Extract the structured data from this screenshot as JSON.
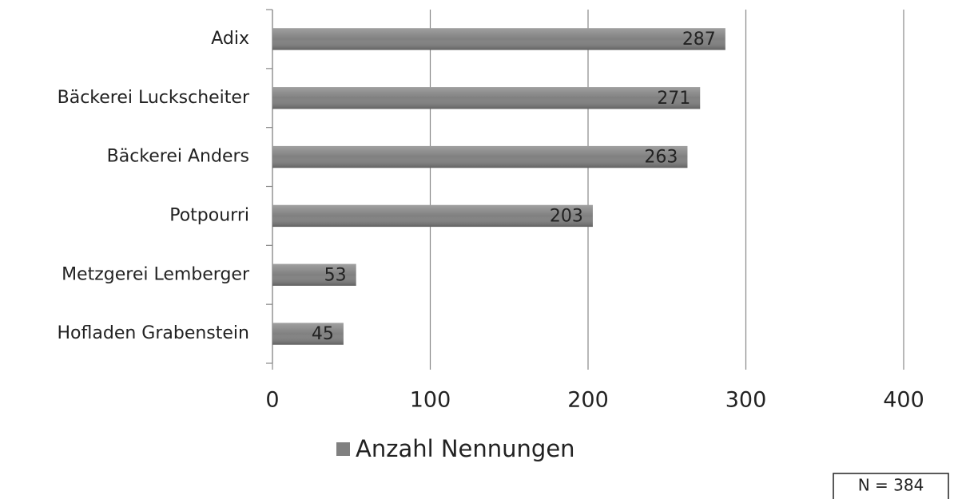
{
  "chart_data": {
    "type": "bar",
    "orientation": "horizontal",
    "categories": [
      "Adix",
      "Bäckerei Luckscheiter",
      "Bäckerei Anders",
      "Potpourri",
      "Metzgerei Lemberger",
      "Hofladen Grabenstein"
    ],
    "series": [
      {
        "name": "Anzahl Nennungen",
        "color": "#808080",
        "values": [
          287,
          271,
          263,
          203,
          53,
          45
        ]
      }
    ],
    "xlim": [
      0,
      400
    ],
    "xticks": [
      0,
      100,
      200,
      300,
      400
    ],
    "grid": true,
    "legend": "bottom",
    "annotation": "N = 384"
  }
}
